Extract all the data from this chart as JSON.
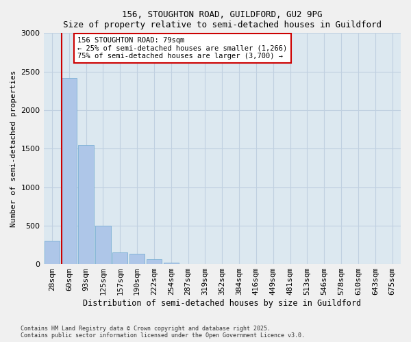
{
  "title_line1": "156, STOUGHTON ROAD, GUILDFORD, GU2 9PG",
  "title_line2": "Size of property relative to semi-detached houses in Guildford",
  "xlabel": "Distribution of semi-detached houses by size in Guildford",
  "ylabel": "Number of semi-detached properties",
  "categories": [
    "28sqm",
    "60sqm",
    "93sqm",
    "125sqm",
    "157sqm",
    "190sqm",
    "222sqm",
    "254sqm",
    "287sqm",
    "319sqm",
    "352sqm",
    "384sqm",
    "416sqm",
    "449sqm",
    "481sqm",
    "513sqm",
    "546sqm",
    "578sqm",
    "610sqm",
    "643sqm",
    "675sqm"
  ],
  "values": [
    300,
    2420,
    1550,
    500,
    150,
    130,
    60,
    20,
    0,
    0,
    0,
    0,
    0,
    0,
    0,
    0,
    0,
    0,
    0,
    0,
    0
  ],
  "bar_color": "#aec6e8",
  "bar_edge_color": "#7aafd4",
  "vline_color": "#cc0000",
  "vline_x_index": 1,
  "annotation_text_line1": "156 STOUGHTON ROAD: 79sqm",
  "annotation_text_line2": "← 25% of semi-detached houses are smaller (1,266)",
  "annotation_text_line3": "75% of semi-detached houses are larger (3,700) →",
  "annotation_box_color": "#cc0000",
  "annotation_fill_color": "#ffffff",
  "ylim": [
    0,
    3000
  ],
  "yticks": [
    0,
    500,
    1000,
    1500,
    2000,
    2500,
    3000
  ],
  "grid_color": "#c0d0e0",
  "bg_color": "#dce8f0",
  "fig_bg_color": "#f0f0f0",
  "footnote1": "Contains HM Land Registry data © Crown copyright and database right 2025.",
  "footnote2": "Contains public sector information licensed under the Open Government Licence v3.0."
}
